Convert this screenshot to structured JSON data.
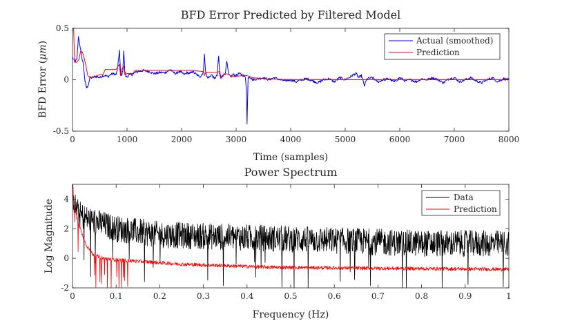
{
  "chart_data": [
    {
      "type": "line",
      "title": "BFD Error Predicted by Filtered Model",
      "xlabel": "Time (samples)",
      "ylabel_prefix": "BFD Error (",
      "ylabel_unit": "μm",
      "ylabel_suffix": ")",
      "xlim": [
        0,
        8000
      ],
      "ylim": [
        -0.5,
        0.5
      ],
      "grid": false,
      "legend_position": "top-right",
      "xticks": [
        0,
        1000,
        2000,
        3000,
        4000,
        5000,
        6000,
        7000,
        8000
      ],
      "xtick_labels": [
        "0",
        "1000",
        "2000",
        "3000",
        "4000",
        "5000",
        "6000",
        "7000",
        "8000"
      ],
      "yticks": [
        -0.5,
        0,
        0.5
      ],
      "ytick_labels": [
        "-0.5",
        "0",
        "0.5"
      ],
      "series": [
        {
          "name": "Actual (smoothed)",
          "color": "#0000ff",
          "x": [
            0,
            40,
            80,
            110,
            140,
            170,
            200,
            230,
            260,
            290,
            320,
            360,
            400,
            450,
            500,
            550,
            600,
            650,
            700,
            750,
            800,
            830,
            860,
            880,
            900,
            920,
            940,
            960,
            980,
            1000,
            1050,
            1100,
            1150,
            1200,
            1300,
            1400,
            1500,
            1600,
            1700,
            1800,
            1850,
            1900,
            1950,
            2000,
            2050,
            2100,
            2150,
            2200,
            2300,
            2350,
            2400,
            2420,
            2440,
            2460,
            2500,
            2550,
            2600,
            2650,
            2680,
            2700,
            2720,
            2750,
            2800,
            2830,
            2860,
            2900,
            2950,
            3000,
            3050,
            3100,
            3140,
            3170,
            3190,
            3200,
            3220,
            3250,
            3300,
            3400,
            3500,
            3600,
            3700,
            3800,
            3900,
            4000,
            4100,
            4200,
            4300,
            4400,
            4500,
            4600,
            4700,
            4800,
            4900,
            5000,
            5100,
            5150,
            5200,
            5250,
            5300,
            5350,
            5400,
            5500,
            5600,
            5700,
            5800,
            5900,
            6000,
            6100,
            6200,
            6300,
            6400,
            6500,
            6600,
            6700,
            6800,
            6900,
            7000,
            7100,
            7200,
            7300,
            7400,
            7500,
            7600,
            7700,
            7800,
            7900,
            8000
          ],
          "y": [
            0.22,
            0.17,
            0.2,
            0.42,
            0.32,
            0.22,
            0.15,
            -0.02,
            -0.08,
            -0.05,
            0.02,
            0.02,
            0.03,
            0.03,
            0.02,
            0.04,
            0.04,
            0.03,
            0.05,
            0.06,
            0.05,
            0.12,
            0.29,
            0.08,
            0.04,
            0.08,
            0.28,
            0.08,
            0.03,
            0.03,
            0.05,
            0.05,
            0.07,
            0.08,
            0.09,
            0.08,
            0.06,
            0.07,
            0.07,
            0.1,
            0.07,
            0.06,
            0.08,
            0.07,
            0.05,
            0.07,
            0.06,
            0.08,
            0.04,
            0.03,
            0.08,
            0.25,
            0.08,
            0.03,
            0.02,
            0.05,
            0.01,
            0.04,
            0.23,
            0.05,
            0.01,
            0.04,
            0.06,
            0.18,
            0.05,
            0.03,
            0.05,
            0.04,
            0.06,
            0.05,
            0.04,
            0.02,
            -0.1,
            -0.43,
            0.02,
            0.03,
            0.0,
            0.01,
            0.02,
            0.0,
            0.02,
            0.0,
            -0.01,
            0.0,
            -0.02,
            0.0,
            0.01,
            -0.01,
            -0.03,
            0.0,
            0.01,
            -0.02,
            0.02,
            0.0,
            0.03,
            0.05,
            0.06,
            0.02,
            0.04,
            -0.06,
            0.01,
            0.02,
            -0.02,
            0.0,
            0.01,
            -0.02,
            0.02,
            -0.01,
            0.0,
            -0.02,
            0.01,
            0.0,
            0.02,
            0.0,
            -0.03,
            0.01,
            0.02,
            -0.02,
            0.0,
            0.02,
            -0.01,
            -0.03,
            0.0,
            0.02,
            -0.02,
            0.01,
            0.0
          ]
        },
        {
          "name": "Prediction",
          "color": "#ff0000",
          "x": [
            0,
            20,
            40,
            80,
            120,
            150,
            180,
            210,
            240,
            280,
            320,
            400,
            500,
            560,
            600,
            700,
            800,
            860,
            880,
            900,
            940,
            960,
            1000,
            1100,
            1150,
            1200,
            1400,
            1600,
            1800,
            2000,
            2200,
            2400,
            2420,
            2440,
            2600,
            2700,
            2720,
            2800,
            2880,
            2900,
            3000,
            3100,
            3200,
            3300,
            3500,
            4000,
            4500,
            5000,
            5500,
            6000,
            6500,
            7000,
            7500,
            8000
          ],
          "y": [
            0.6,
            0.58,
            0.17,
            0.17,
            0.2,
            0.28,
            0.27,
            0.22,
            0.15,
            0.04,
            0.02,
            0.03,
            0.05,
            0.05,
            0.1,
            0.1,
            0.1,
            0.15,
            0.04,
            0.1,
            0.13,
            0.05,
            0.06,
            0.06,
            0.09,
            0.09,
            0.09,
            0.09,
            0.09,
            0.09,
            0.09,
            0.08,
            0.04,
            0.07,
            0.07,
            0.08,
            0.03,
            0.06,
            0.05,
            0.03,
            0.03,
            0.04,
            0.04,
            0.02,
            0.01,
            0.0,
            0.0,
            0.0,
            0.0,
            0.0,
            0.0,
            0.0,
            0.0,
            0.0
          ]
        }
      ]
    },
    {
      "type": "line",
      "title": "Power Spectrum",
      "xlabel": "Frequency (Hz)",
      "ylabel": "Log Magnitude",
      "xlim": [
        0,
        1
      ],
      "ylim": [
        -2,
        5
      ],
      "grid": false,
      "legend_position": "top-right",
      "xticks": [
        0,
        0.1,
        0.2,
        0.3,
        0.4,
        0.5,
        0.6,
        0.7,
        0.8,
        0.9,
        1
      ],
      "xtick_labels": [
        "0",
        "0.1",
        "0.2",
        "0.3",
        "0.4",
        "0.5",
        "0.6",
        "0.7",
        "0.8",
        "0.9",
        "1"
      ],
      "yticks": [
        -2,
        0,
        2,
        4
      ],
      "ytick_labels": [
        "-2",
        "0",
        "2",
        "4"
      ],
      "series": [
        {
          "name": "Data",
          "color": "#000000",
          "x": [
            0,
            0.005,
            0.01,
            0.02,
            0.03,
            0.05,
            0.08,
            0.1,
            0.15,
            0.2,
            0.3,
            0.4,
            0.5,
            0.6,
            0.7,
            0.8,
            0.9,
            1.0
          ],
          "y": [
            4.5,
            3.6,
            3.2,
            2.9,
            2.7,
            2.5,
            2.2,
            2.0,
            1.8,
            1.6,
            1.5,
            1.4,
            1.3,
            1.2,
            1.1,
            1.0,
            1.0,
            1.0
          ],
          "spread": 0.9
        },
        {
          "name": "Prediction",
          "color": "#ff0000",
          "x": [
            0,
            0.005,
            0.01,
            0.02,
            0.03,
            0.04,
            0.05,
            0.07,
            0.1,
            0.15,
            0.2,
            0.25,
            0.3,
            0.35,
            0.4,
            0.45,
            0.5,
            0.6,
            0.7,
            0.8,
            0.9,
            1.0
          ],
          "y": [
            4.8,
            3.5,
            2.8,
            1.8,
            1.0,
            0.5,
            0.2,
            0.0,
            -0.1,
            -0.2,
            -0.3,
            -0.4,
            -0.45,
            -0.5,
            -0.55,
            -0.6,
            -0.62,
            -0.65,
            -0.68,
            -0.7,
            -0.72,
            -0.75
          ],
          "spread": 0.12
        }
      ]
    }
  ]
}
